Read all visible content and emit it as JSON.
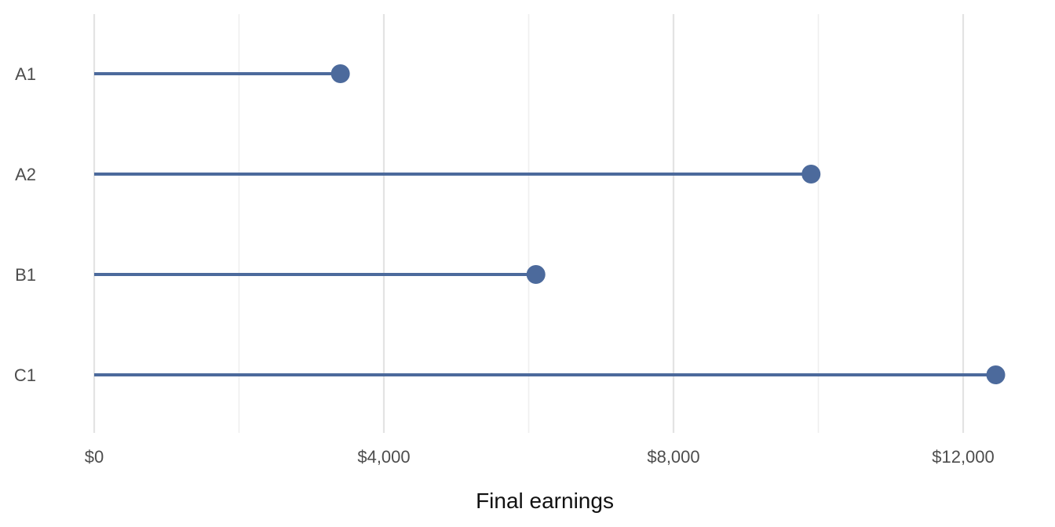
{
  "chart_data": {
    "type": "lollipop",
    "categories": [
      "A1",
      "A2",
      "B1",
      "C1"
    ],
    "values": [
      3400,
      9900,
      6100,
      12450
    ],
    "xlabel": "Final earnings",
    "ylabel": "",
    "xlim": [
      0,
      12500
    ],
    "major_ticks": [
      0,
      4000,
      8000,
      12000
    ],
    "tick_labels": [
      "$0",
      "$4,000",
      "$8,000",
      "$12,000"
    ],
    "minor_ticks": [
      2000,
      6000,
      10000
    ],
    "grid": "vertical",
    "legend": "none",
    "color": "#4c6a9c"
  }
}
